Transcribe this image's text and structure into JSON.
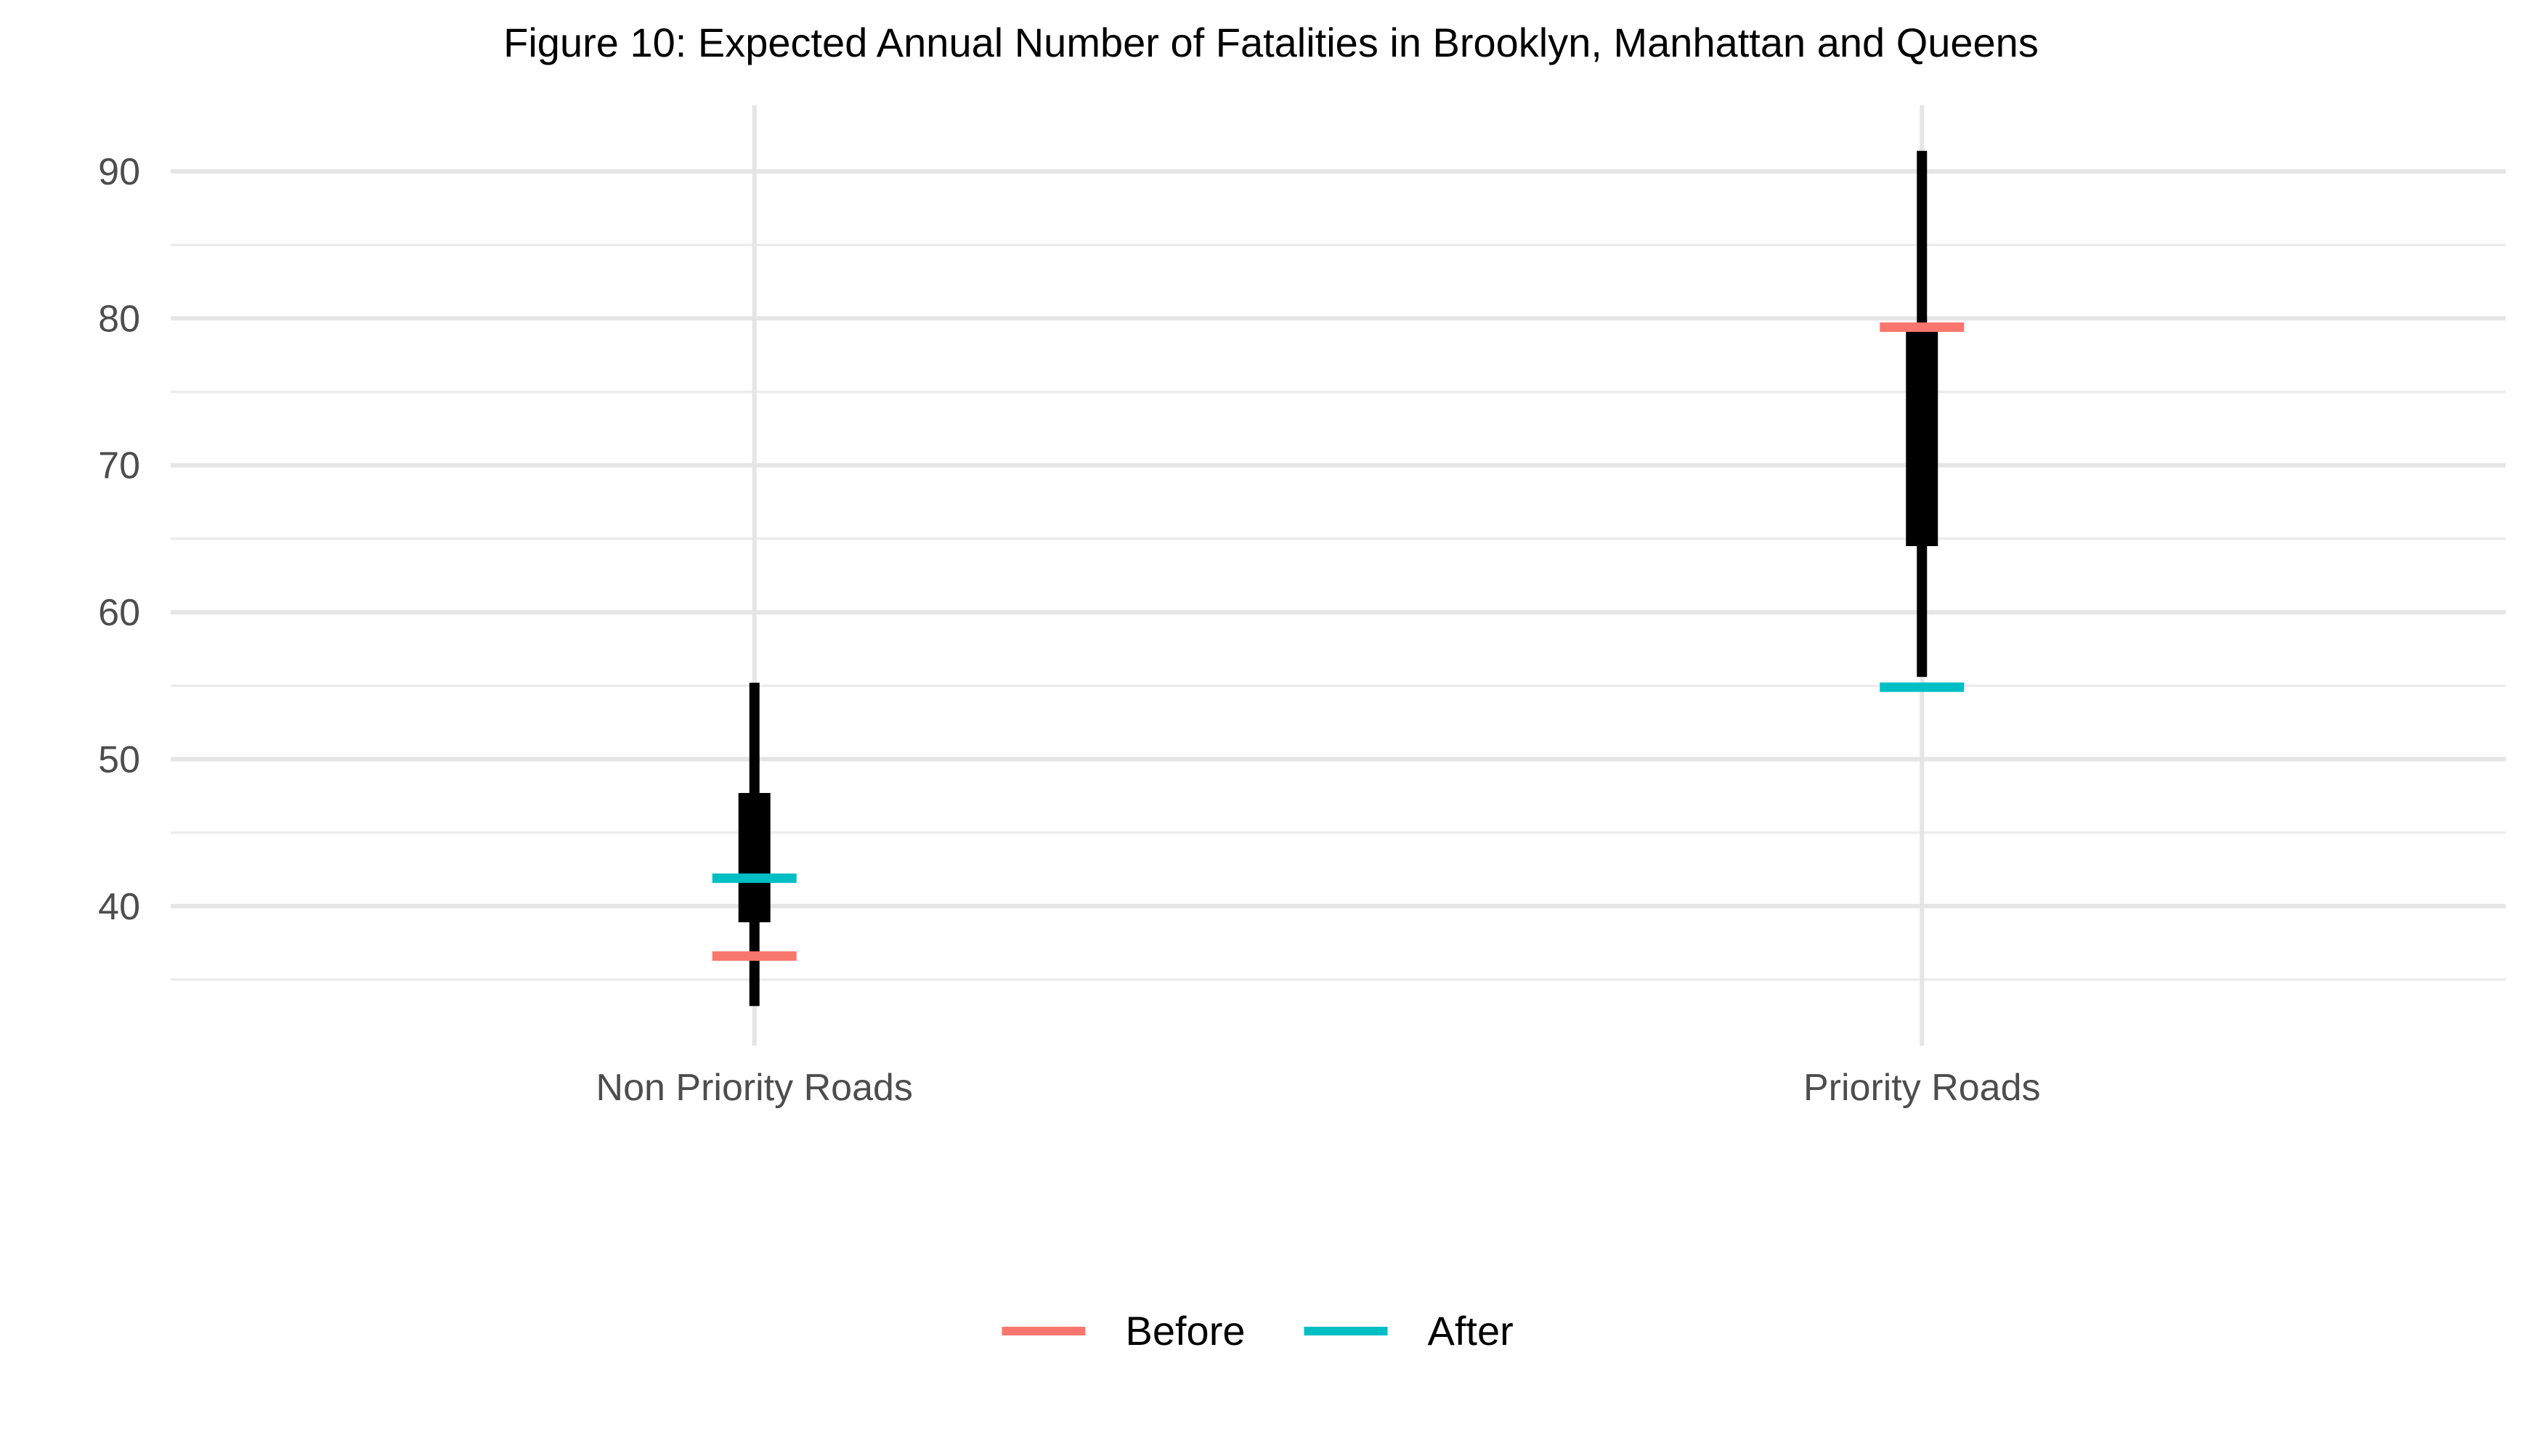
{
  "chart_data": {
    "type": "interval",
    "title": "Figure 10: Expected Annual Number of Fatalities in Brooklyn, Manhattan and Queens",
    "xlabel": "",
    "ylabel": "",
    "categories": [
      "Non Priority Roads",
      "Priority Roads"
    ],
    "ylim": [
      30.5,
      94.5
    ],
    "y_ticks": [
      40,
      50,
      60,
      70,
      80,
      90
    ],
    "y_tick_labels": [
      "40",
      "50",
      "60",
      "70",
      "80",
      "90"
    ],
    "grid": true,
    "legend_position": "bottom",
    "intervals": [
      {
        "category": "Non Priority Roads",
        "outer_low": 33.2,
        "outer_high": 55.2,
        "inner_low": 38.9,
        "inner_high": 47.7
      },
      {
        "category": "Priority Roads",
        "outer_low": 55.6,
        "outer_high": 91.4,
        "inner_low": 64.5,
        "inner_high": 79.3
      }
    ],
    "series": [
      {
        "name": "Before",
        "color": "#F8766D",
        "values": [
          36.6,
          79.4
        ]
      },
      {
        "name": "After",
        "color": "#00BFC4",
        "values": [
          41.9,
          54.9
        ]
      }
    ],
    "interval_color": "#000000"
  }
}
